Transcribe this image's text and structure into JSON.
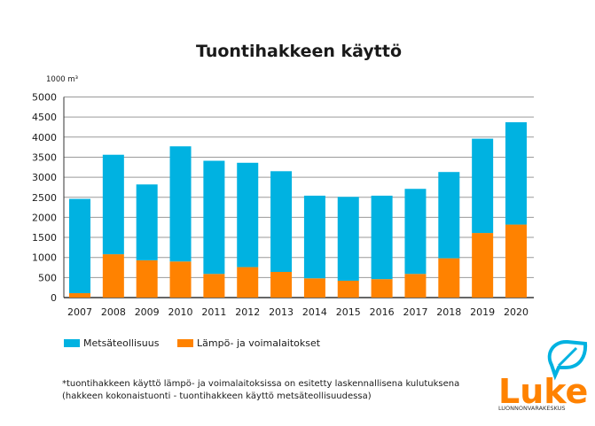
{
  "chart_data": {
    "type": "bar",
    "stacked": true,
    "title": "Tuontihakkeen käyttö",
    "ylabel": "1000 m³",
    "xlabel": "",
    "ylim": [
      0,
      5000
    ],
    "yticks": [
      0,
      500,
      1000,
      1500,
      2000,
      2500,
      3000,
      3500,
      4000,
      4500,
      5000
    ],
    "grid": true,
    "legend_position": "bottom-left",
    "categories": [
      "2007",
      "2008",
      "2009",
      "2010",
      "2011",
      "2012",
      "2013",
      "2014",
      "2015",
      "2016",
      "2017",
      "2018",
      "2019",
      "2020"
    ],
    "series": [
      {
        "name": "Lämpö- ja voimalaitokset",
        "color": "#ff8200",
        "values": [
          110,
          1080,
          930,
          900,
          590,
          760,
          640,
          480,
          420,
          460,
          590,
          980,
          1610,
          1820
        ]
      },
      {
        "name": "Metsäteollisuus",
        "color": "#00b2e1",
        "values": [
          2350,
          2480,
          1890,
          2870,
          2820,
          2600,
          2510,
          2060,
          2090,
          2080,
          2120,
          2150,
          2350,
          2550
        ]
      }
    ],
    "legend": [
      "Metsäteollisuus",
      "Lämpö- ja voimalaitokset"
    ],
    "footnote": [
      "*tuontihakkeen käyttö lämpö- ja voimalaitoksissa on esitetty laskennallisena kulutuksena",
      "(hakkeen kokonaistuonti - tuontihakkeen käyttö metsäteollisuudessa)"
    ]
  },
  "logo": {
    "text": "Luke",
    "subtitle": "LUONNONVARAKESKUS",
    "icon": "leaf-speech-bubble-icon",
    "colors": {
      "orange": "#ff8200",
      "blue": "#00b2e1"
    }
  }
}
